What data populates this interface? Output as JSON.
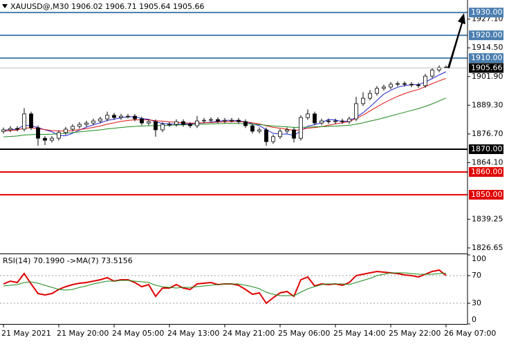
{
  "chart_data": [
    {
      "type": "candlestick",
      "title": "XAUUSD@,M30  1906.02 1906.71 1905.64 1905.66",
      "categories": [
        "21 May 2021",
        null,
        null,
        null,
        null,
        null,
        null,
        null,
        "21 May 20:00",
        null,
        null,
        null,
        null,
        null,
        null,
        null,
        "24 May 05:00",
        null,
        null,
        null,
        null,
        null,
        null,
        null,
        "24 May 13:00",
        null,
        null,
        null,
        null,
        null,
        null,
        null,
        "24 May 21:00",
        null,
        null,
        null,
        null,
        null,
        null,
        null,
        "25 May 06:00",
        null,
        null,
        null,
        null,
        null,
        null,
        null,
        "25 May 14:00",
        null,
        null,
        null,
        null,
        null,
        null,
        null,
        "25 May 22:00",
        null,
        null,
        null,
        null,
        null,
        null,
        null,
        "26 May 07:00"
      ],
      "open": [
        1877.8,
        1878.5,
        1879.1,
        1878.8,
        1885.5,
        1879.4,
        1874.8,
        1873.9,
        1874.8,
        1877.3,
        1878.8,
        1880.0,
        1880.9,
        1881.5,
        1882.4,
        1883.3,
        1884.9,
        1883.9,
        1884.5,
        1884.5,
        1883.3,
        1881.5,
        1882.1,
        1878.5,
        1880.9,
        1880.9,
        1882.1,
        1880.9,
        1880.3,
        1882.4,
        1882.7,
        1883.0,
        1882.4,
        1882.7,
        1882.7,
        1882.1,
        1880.3,
        1877.9,
        1878.5,
        1873.3,
        1875.5,
        1877.9,
        1878.5,
        1874.8,
        1883.9,
        1885.5,
        1881.5,
        1882.4,
        1882.1,
        1882.4,
        1882.1,
        1883.3,
        1890.0,
        1892.4,
        1894.5,
        1896.7,
        1897.3,
        1898.5,
        1898.8,
        1898.5,
        1898.2,
        1897.9,
        1902.1,
        1904.8,
        1906.02
      ],
      "high": [
        1879.5,
        1880.1,
        1880.1,
        1888.0,
        1886.5,
        1880.4,
        1875.8,
        1875.8,
        1878.3,
        1879.8,
        1881.0,
        1881.9,
        1882.5,
        1883.4,
        1884.3,
        1886.5,
        1885.9,
        1885.5,
        1885.5,
        1885.5,
        1884.3,
        1883.1,
        1883.1,
        1881.9,
        1881.9,
        1883.1,
        1883.1,
        1881.9,
        1884.5,
        1883.7,
        1884.0,
        1884.0,
        1883.7,
        1883.7,
        1883.7,
        1883.1,
        1881.3,
        1879.5,
        1879.5,
        1876.5,
        1878.9,
        1879.5,
        1879.5,
        1884.9,
        1887.5,
        1886.5,
        1883.4,
        1883.4,
        1883.4,
        1883.4,
        1884.3,
        1893.0,
        1895.0,
        1896.0,
        1897.7,
        1898.3,
        1899.5,
        1899.8,
        1899.8,
        1899.5,
        1899.2,
        1903.1,
        1905.8,
        1906.8,
        1906.71
      ],
      "low": [
        1876.8,
        1877.5,
        1877.8,
        1877.8,
        1878.4,
        1871.5,
        1871.8,
        1872.9,
        1873.8,
        1876.3,
        1877.8,
        1879.0,
        1879.9,
        1880.5,
        1881.4,
        1882.3,
        1882.9,
        1882.9,
        1883.5,
        1882.3,
        1880.5,
        1880.5,
        1875.5,
        1877.5,
        1879.9,
        1879.9,
        1879.9,
        1879.3,
        1879.3,
        1881.4,
        1881.7,
        1881.4,
        1881.4,
        1881.7,
        1881.1,
        1879.3,
        1876.9,
        1876.9,
        1871.5,
        1872.3,
        1874.5,
        1876.9,
        1873.0,
        1873.8,
        1882.9,
        1880.5,
        1880.5,
        1881.1,
        1881.1,
        1881.1,
        1881.1,
        1882.3,
        1889.0,
        1891.4,
        1893.5,
        1895.7,
        1896.3,
        1897.5,
        1897.5,
        1897.2,
        1896.9,
        1896.9,
        1901.1,
        1903.8,
        1905.64
      ],
      "close": [
        1878.5,
        1879.1,
        1878.8,
        1885.5,
        1879.4,
        1874.8,
        1873.9,
        1874.8,
        1877.3,
        1878.8,
        1880.0,
        1880.9,
        1881.5,
        1882.4,
        1883.3,
        1884.9,
        1883.9,
        1884.5,
        1884.5,
        1883.3,
        1881.5,
        1882.1,
        1878.5,
        1880.9,
        1880.9,
        1882.1,
        1880.9,
        1880.3,
        1882.4,
        1882.7,
        1883.0,
        1882.4,
        1882.7,
        1882.7,
        1882.1,
        1880.3,
        1877.9,
        1878.5,
        1873.3,
        1875.5,
        1877.9,
        1878.5,
        1874.8,
        1883.9,
        1885.5,
        1881.5,
        1882.4,
        1882.1,
        1882.4,
        1882.1,
        1883.3,
        1890.0,
        1892.4,
        1894.5,
        1896.7,
        1897.3,
        1898.5,
        1898.8,
        1898.5,
        1898.2,
        1897.9,
        1902.1,
        1904.8,
        1905.8,
        1905.66
      ],
      "up_color": "#ffffff",
      "down_color": "#000000",
      "lines": [
        {
          "color": "#1f1fd8",
          "values": [
            1878.3,
            1878.6,
            1878.8,
            1880.5,
            1880.3,
            1879.5,
            1878.5,
            1877.7,
            1876.0,
            1875.9,
            1877.0,
            1878.4,
            1879.7,
            1880.7,
            1881.6,
            1882.6,
            1883.2,
            1883.8,
            1884.2,
            1884.2,
            1883.5,
            1883.1,
            1882.0,
            1881.3,
            1881.1,
            1881.0,
            1881.0,
            1881.2,
            1881.3,
            1881.6,
            1881.9,
            1882.2,
            1882.6,
            1882.7,
            1882.5,
            1882.0,
            1881.1,
            1880.3,
            1878.6,
            1877.0,
            1876.6,
            1876.7,
            1876.0,
            1878.1,
            1880.1,
            1880.8,
            1881.6,
            1883.1,
            1882.8,
            1882.1,
            1882.5,
            1884.0,
            1886.0,
            1888.6,
            1891.4,
            1894.2,
            1895.9,
            1897.2,
            1897.9,
            1898.3,
            1898.3,
            1899.5,
            1901.0,
            1902.6,
            1904.0
          ]
        },
        {
          "color": "#e01010",
          "values": [
            1878.0,
            1878.2,
            1878.4,
            1879.2,
            1879.4,
            1879.0,
            1878.6,
            1878.2,
            1878.0,
            1878.0,
            1878.2,
            1878.6,
            1879.0,
            1879.6,
            1880.2,
            1881.0,
            1881.6,
            1882.2,
            1882.6,
            1882.9,
            1882.9,
            1882.9,
            1882.5,
            1882.3,
            1882.0,
            1881.8,
            1881.6,
            1881.4,
            1881.5,
            1881.6,
            1881.7,
            1881.9,
            1882.0,
            1882.1,
            1882.1,
            1882.0,
            1881.6,
            1881.1,
            1880.3,
            1879.6,
            1879.2,
            1878.8,
            1878.2,
            1878.6,
            1879.2,
            1879.5,
            1879.9,
            1880.5,
            1881.1,
            1881.6,
            1882.1,
            1883.5,
            1885.0,
            1886.8,
            1888.6,
            1890.3,
            1891.8,
            1893.2,
            1894.4,
            1895.4,
            1896.2,
            1897.5,
            1898.8,
            1900.0,
            1901.1
          ]
        },
        {
          "color": "#1a8a1a",
          "values": [
            1875.4,
            1875.6,
            1875.8,
            1876.2,
            1876.4,
            1876.5,
            1876.5,
            1876.6,
            1876.8,
            1877.0,
            1877.3,
            1877.6,
            1877.9,
            1878.2,
            1878.5,
            1878.9,
            1879.2,
            1879.5,
            1879.8,
            1880.0,
            1880.2,
            1880.3,
            1880.3,
            1880.4,
            1880.5,
            1880.6,
            1880.7,
            1880.8,
            1880.9,
            1881.0,
            1881.1,
            1881.2,
            1881.3,
            1881.3,
            1881.3,
            1881.2,
            1881.0,
            1880.8,
            1880.5,
            1880.2,
            1880.0,
            1879.8,
            1879.6,
            1879.6,
            1879.7,
            1879.8,
            1879.9,
            1880.0,
            1880.1,
            1880.3,
            1880.5,
            1881.0,
            1881.6,
            1882.3,
            1883.0,
            1883.8,
            1884.6,
            1885.4,
            1886.2,
            1887.0,
            1887.8,
            1888.8,
            1889.9,
            1891.2,
            1892.5
          ]
        }
      ],
      "ylim": [
        1824.2,
        1935.5
      ],
      "yticks": [
        {
          "value": 1927.1,
          "label": "1927.10"
        },
        {
          "value": 1914.5,
          "label": "1914.50"
        },
        {
          "value": 1901.9,
          "label": "1901.90"
        },
        {
          "value": 1889.3,
          "label": "1889.30"
        },
        {
          "value": 1876.7,
          "label": "1876.70"
        },
        {
          "value": 1864.1,
          "label": "1864.10"
        },
        {
          "value": 1839.25,
          "label": "1839.25"
        },
        {
          "value": 1826.65,
          "label": "1826.65"
        }
      ],
      "levels": [
        {
          "value": 1930,
          "label": "1930.00",
          "color": "#4a7eb0"
        },
        {
          "value": 1920,
          "label": "1920.00",
          "color": "#4a7eb0"
        },
        {
          "value": 1910,
          "label": "1910.00",
          "color": "#4a7eb0"
        },
        {
          "value": 1870,
          "label": "1870.00",
          "color": "#000000"
        },
        {
          "value": 1860,
          "label": "1860.00",
          "color": "#e00000"
        },
        {
          "value": 1850,
          "label": "1850.00",
          "color": "#e00000"
        }
      ],
      "current_price": {
        "value": 1905.66,
        "label": "1905.66",
        "color": "#c0c0c0"
      }
    },
    {
      "type": "line",
      "title": "RSI(14) 70.1990  ->MA(7) 73.5156",
      "series": [
        {
          "color": "#e00000",
          "values": [
            58,
            62,
            60,
            73,
            58,
            44,
            42,
            44,
            50,
            54,
            57,
            59,
            60,
            62,
            64,
            67,
            62,
            64,
            64,
            60,
            54,
            57,
            40,
            52,
            52,
            57,
            52,
            50,
            58,
            59,
            60,
            57,
            58,
            58,
            56,
            50,
            43,
            45,
            30,
            38,
            45,
            47,
            40,
            64,
            68,
            55,
            58,
            57,
            58,
            56,
            60,
            70,
            72,
            74,
            76,
            75,
            74,
            73,
            71,
            70,
            68,
            72,
            76,
            78,
            70.199
          ]
        },
        {
          "color": "#1a8a1a",
          "values": [
            55,
            56,
            57,
            60,
            61,
            59,
            56,
            53,
            50,
            49,
            50,
            53,
            55,
            58,
            60,
            62,
            62,
            63,
            63,
            62,
            61,
            60,
            56,
            54,
            53,
            52,
            53,
            53,
            54,
            55,
            56,
            57,
            58,
            58,
            58,
            56,
            54,
            51,
            46,
            43,
            41,
            41,
            41,
            46,
            51,
            54,
            57,
            58,
            58,
            58,
            57,
            60,
            63,
            66,
            70,
            72,
            74,
            74,
            74,
            73,
            72,
            72,
            72,
            73,
            73.5156
          ]
        }
      ],
      "ylim": [
        0,
        100
      ],
      "yticks": [
        0,
        30,
        70,
        100
      ],
      "levels": [
        30,
        70
      ]
    }
  ]
}
